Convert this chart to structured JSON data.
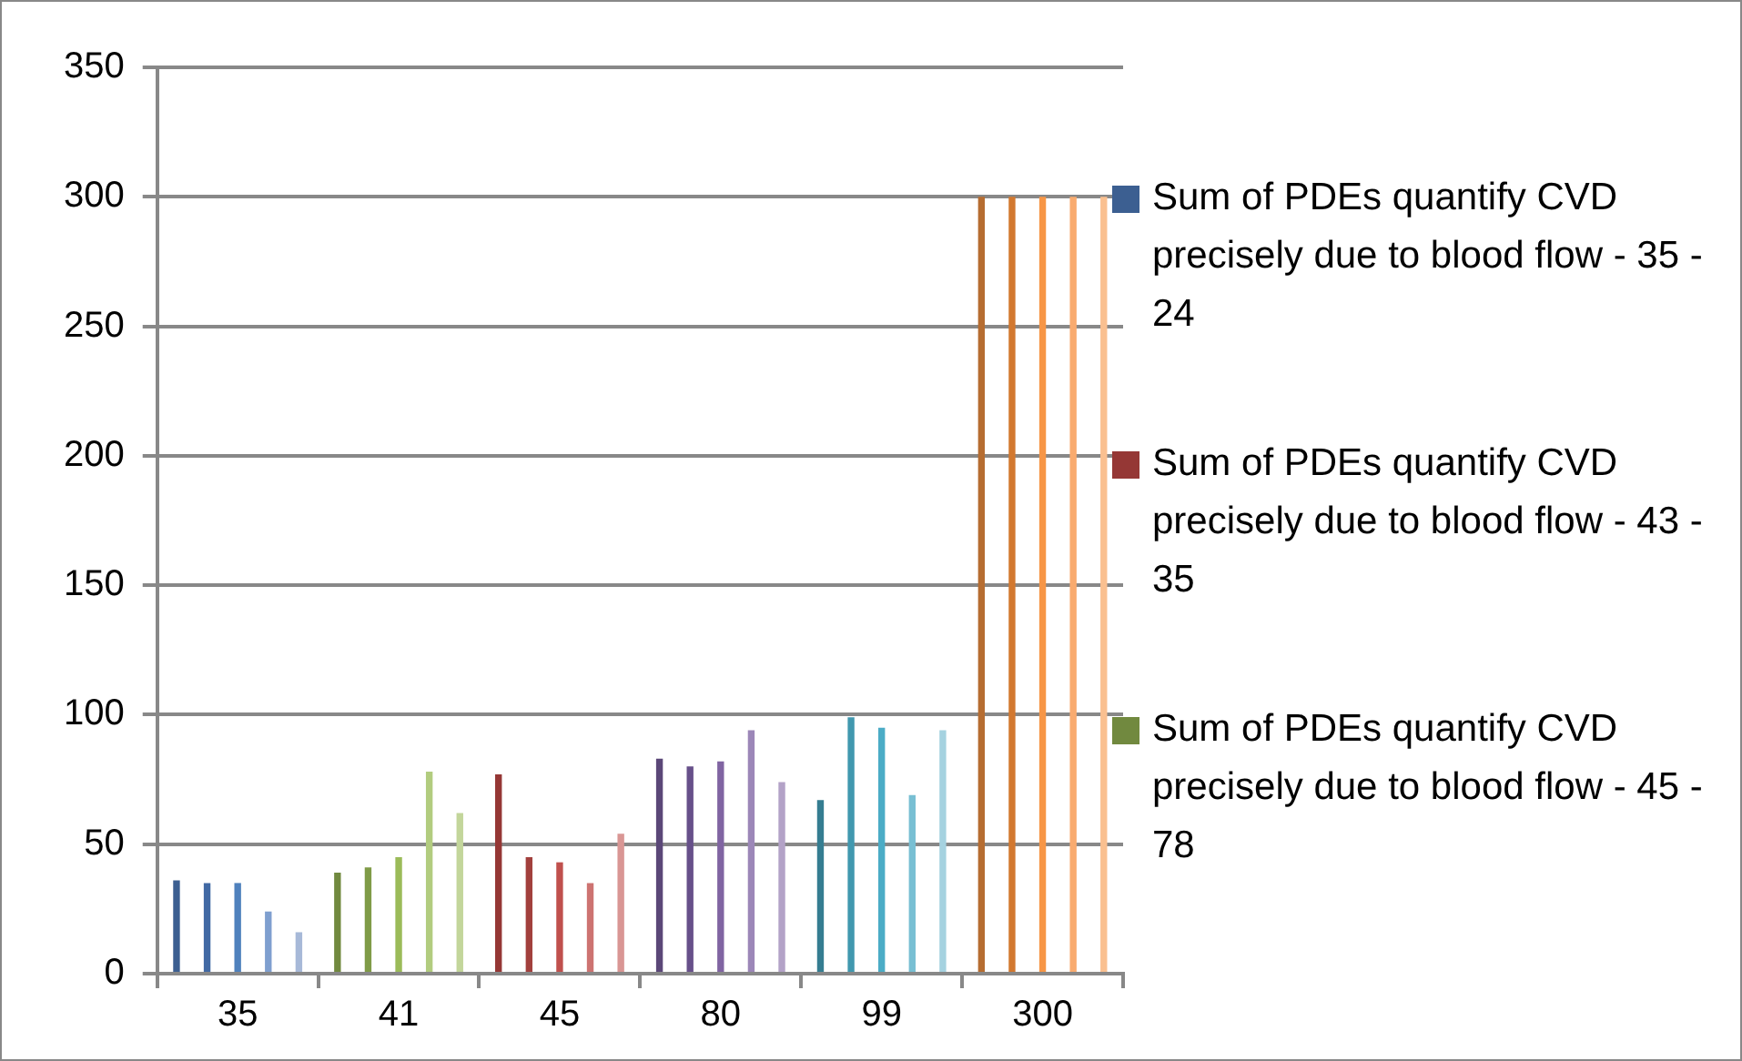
{
  "chart_data": {
    "type": "bar",
    "categories": [
      "35",
      "41",
      "45",
      "80",
      "99",
      "300"
    ],
    "ylim": [
      0,
      350
    ],
    "yticks": [
      0,
      50,
      100,
      150,
      200,
      250,
      300,
      350
    ],
    "grid": "y",
    "legend": "right",
    "series": [
      {
        "name": "Sum of PDEs quantify CVD precisely due to blood flow - 35 - 24",
        "color": "#3c5f91",
        "values": [
          36,
          null,
          null,
          null,
          null,
          null
        ]
      },
      {
        "name": "Sum of PDEs quantify CVD precisely due to blood flow - 43 - 35",
        "color": "#953735",
        "values": [
          null,
          null,
          77,
          null,
          null,
          null
        ]
      },
      {
        "name": "Sum of PDEs quantify CVD precisely due to blood flow - 45 - 78",
        "color": "#71893f",
        "values": [
          null,
          39,
          null,
          null,
          null,
          null
        ]
      },
      {
        "color": "#4169a4",
        "values": [
          35,
          null,
          null,
          null,
          null,
          null
        ]
      },
      {
        "color": "#4f81bd",
        "values": [
          35,
          null,
          null,
          null,
          null,
          null
        ]
      },
      {
        "color": "#7f9fcf",
        "values": [
          24,
          null,
          null,
          null,
          null,
          null
        ]
      },
      {
        "color": "#a7b9d8",
        "values": [
          16,
          null,
          null,
          null,
          null,
          null
        ]
      },
      {
        "color": "#7f9b47",
        "values": [
          null,
          41,
          null,
          null,
          null,
          null
        ]
      },
      {
        "color": "#9bbb59",
        "values": [
          null,
          45,
          null,
          null,
          null,
          null
        ]
      },
      {
        "color": "#b2cc7f",
        "values": [
          null,
          78,
          null,
          null,
          null,
          null
        ]
      },
      {
        "color": "#c3d69b",
        "values": [
          null,
          62,
          null,
          null,
          null,
          null
        ]
      },
      {
        "color": "#a2403d",
        "values": [
          null,
          null,
          45,
          null,
          null,
          null
        ]
      },
      {
        "color": "#c0504d",
        "values": [
          null,
          null,
          43,
          null,
          null,
          null
        ]
      },
      {
        "color": "#cd7371",
        "values": [
          null,
          null,
          35,
          null,
          null,
          null
        ]
      },
      {
        "color": "#d99694",
        "values": [
          null,
          null,
          54,
          null,
          null,
          null
        ]
      },
      {
        "color": "#5b4778",
        "values": [
          null,
          null,
          null,
          83,
          null,
          null
        ]
      },
      {
        "color": "#67508a",
        "values": [
          null,
          null,
          null,
          80,
          null,
          null
        ]
      },
      {
        "color": "#8064a2",
        "values": [
          null,
          null,
          null,
          82,
          null,
          null
        ]
      },
      {
        "color": "#9c87b8",
        "values": [
          null,
          null,
          null,
          94,
          null,
          null
        ]
      },
      {
        "color": "#b3a2c7",
        "values": [
          null,
          null,
          null,
          74,
          null,
          null
        ]
      },
      {
        "color": "#357d91",
        "values": [
          null,
          null,
          null,
          null,
          67,
          null
        ]
      },
      {
        "color": "#4198af",
        "values": [
          null,
          null,
          null,
          null,
          99,
          null
        ]
      },
      {
        "color": "#4bacc6",
        "values": [
          null,
          null,
          null,
          null,
          95,
          null
        ]
      },
      {
        "color": "#78bfd3",
        "values": [
          null,
          null,
          null,
          null,
          69,
          null
        ]
      },
      {
        "color": "#a5d2e0",
        "values": [
          null,
          null,
          null,
          null,
          94,
          null
        ]
      },
      {
        "color": "#b66d31",
        "values": [
          null,
          null,
          null,
          null,
          null,
          300
        ]
      },
      {
        "color": "#d2782f",
        "values": [
          null,
          null,
          null,
          null,
          null,
          300
        ]
      },
      {
        "color": "#f79646",
        "values": [
          null,
          null,
          null,
          null,
          null,
          300
        ]
      },
      {
        "color": "#f9ab6f",
        "values": [
          null,
          null,
          null,
          null,
          null,
          300
        ]
      },
      {
        "color": "#fac090",
        "values": [
          null,
          null,
          null,
          null,
          null,
          300
        ]
      }
    ]
  }
}
